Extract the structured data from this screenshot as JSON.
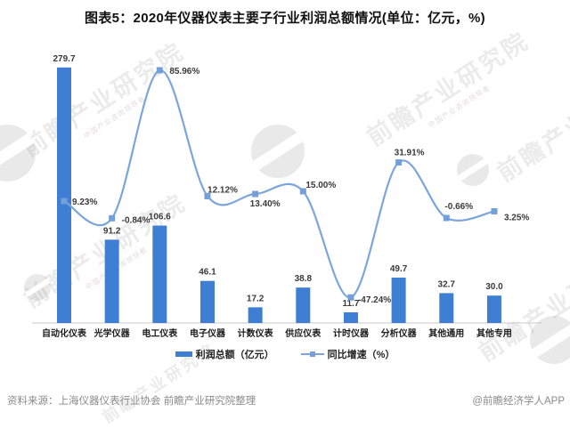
{
  "title": "图表5：2020年仪器仪表主要子行业利润总额情况(单位：亿元，%)",
  "footer": {
    "source": "资料来源：上海仪器仪表行业协会 前瞻产业研究院整理",
    "credit": "@前瞻经济学人APP"
  },
  "watermark": {
    "text": "前瞻产业研究院",
    "subtext": "中国产业咨询领导者"
  },
  "colors": {
    "bar": "#3E7FD4",
    "line": "#7CA5DC",
    "marker": "#74A0DA",
    "axis": "#c9c9c9"
  },
  "chart_data": {
    "type": "bar",
    "subtype": "combo bar + line, dual implicit axes, no visible value axes",
    "title": "图表5：2020年仪器仪表主要子行业利润总额情况(单位：亿元，%)",
    "categories": [
      "自动化仪表",
      "光学仪器",
      "电工仪表",
      "电子仪器",
      "计数仪表",
      "供应仪表",
      "计时仪器",
      "分析仪器",
      "其他通用",
      "其他专用"
    ],
    "series": [
      {
        "name": "利润总额（亿元）",
        "type": "bar",
        "values": [
          279.7,
          91.2,
          106.6,
          46.1,
          17.2,
          38.8,
          11.7,
          49.7,
          32.7,
          30.0
        ]
      },
      {
        "name": "同比增速（%）",
        "type": "line",
        "values": [
          9.23,
          -0.84,
          85.96,
          12.12,
          13.4,
          15.0,
          -47.24,
          31.91,
          -0.66,
          3.25
        ]
      }
    ],
    "xlabel": "",
    "ylabel": "",
    "bar_axis_range": [
      0,
      300
    ],
    "line_axis_range": [
      -60,
      100
    ],
    "grid": false,
    "legend_position": "bottom"
  }
}
